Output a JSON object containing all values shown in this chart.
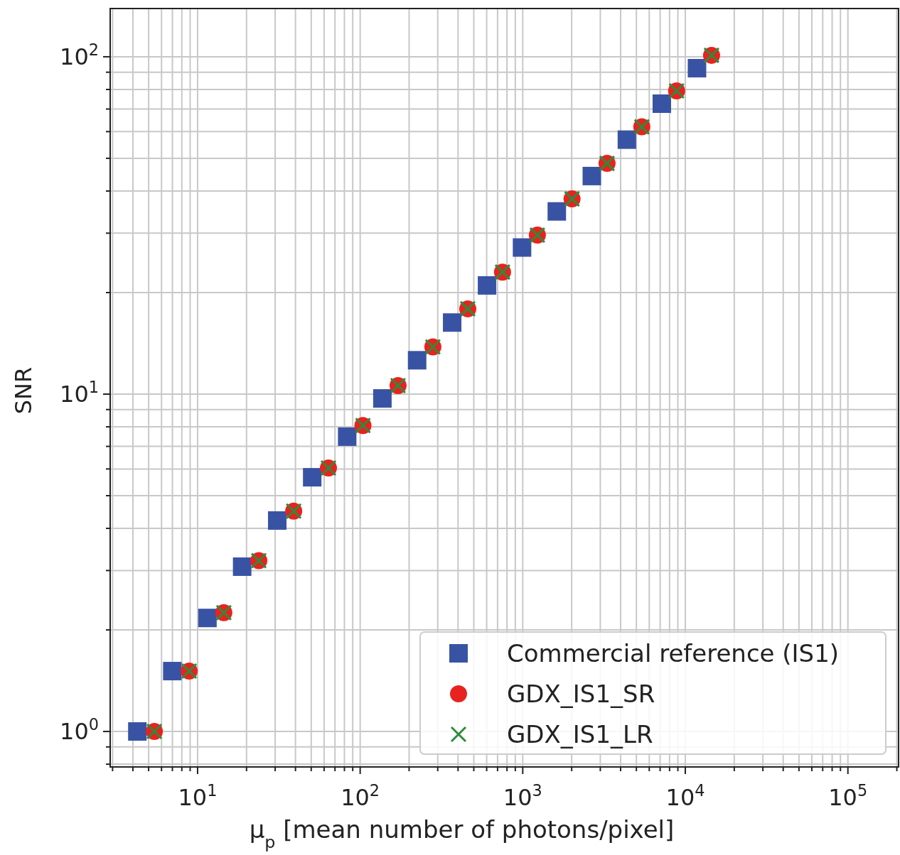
{
  "chart_data": {
    "type": "scatter",
    "xlabel": "μ$_{p}$ [mean number of photons/pixel]",
    "ylabel": "SNR",
    "log": "xy",
    "grid": true,
    "legend": "bottom right",
    "xlim": [
      2.9,
      205000
    ],
    "ylim": [
      0.785,
      139
    ],
    "xticks": [
      {
        "value": 3,
        "label": null
      },
      {
        "value": 4,
        "label": null
      },
      {
        "value": 5,
        "label": null
      },
      {
        "value": 6,
        "label": null
      },
      {
        "value": 7,
        "label": null
      },
      {
        "value": 8,
        "label": null
      },
      {
        "value": 9,
        "label": null
      },
      {
        "value": 10,
        "label": "10$^{1}$"
      },
      {
        "value": 20,
        "label": null
      },
      {
        "value": 30,
        "label": null
      },
      {
        "value": 40,
        "label": null
      },
      {
        "value": 50,
        "label": null
      },
      {
        "value": 60,
        "label": null
      },
      {
        "value": 70,
        "label": null
      },
      {
        "value": 80,
        "label": null
      },
      {
        "value": 90,
        "label": null
      },
      {
        "value": 100,
        "label": "10$^{2}$"
      },
      {
        "value": 200,
        "label": null
      },
      {
        "value": 300,
        "label": null
      },
      {
        "value": 400,
        "label": null
      },
      {
        "value": 500,
        "label": null
      },
      {
        "value": 600,
        "label": null
      },
      {
        "value": 700,
        "label": null
      },
      {
        "value": 800,
        "label": null
      },
      {
        "value": 900,
        "label": null
      },
      {
        "value": 1000,
        "label": "10$^{3}$"
      },
      {
        "value": 2000,
        "label": null
      },
      {
        "value": 3000,
        "label": null
      },
      {
        "value": 4000,
        "label": null
      },
      {
        "value": 5000,
        "label": null
      },
      {
        "value": 6000,
        "label": null
      },
      {
        "value": 7000,
        "label": null
      },
      {
        "value": 8000,
        "label": null
      },
      {
        "value": 9000,
        "label": null
      },
      {
        "value": 10000,
        "label": "10$^{4}$"
      },
      {
        "value": 20000,
        "label": null
      },
      {
        "value": 30000,
        "label": null
      },
      {
        "value": 40000,
        "label": null
      },
      {
        "value": 50000,
        "label": null
      },
      {
        "value": 60000,
        "label": null
      },
      {
        "value": 70000,
        "label": null
      },
      {
        "value": 80000,
        "label": null
      },
      {
        "value": 90000,
        "label": null
      },
      {
        "value": 100000,
        "label": "10$^{5}$"
      },
      {
        "value": 200000,
        "label": null
      }
    ],
    "yticks": [
      {
        "value": 0.8,
        "label": null
      },
      {
        "value": 0.9,
        "label": null
      },
      {
        "value": 1,
        "label": "10$^{0}$"
      },
      {
        "value": 2,
        "label": null
      },
      {
        "value": 3,
        "label": null
      },
      {
        "value": 4,
        "label": null
      },
      {
        "value": 5,
        "label": null
      },
      {
        "value": 6,
        "label": null
      },
      {
        "value": 7,
        "label": null
      },
      {
        "value": 8,
        "label": null
      },
      {
        "value": 9,
        "label": null
      },
      {
        "value": 10,
        "label": "10$^{1}$"
      },
      {
        "value": 20,
        "label": null
      },
      {
        "value": 30,
        "label": null
      },
      {
        "value": 40,
        "label": null
      },
      {
        "value": 50,
        "label": null
      },
      {
        "value": 60,
        "label": null
      },
      {
        "value": 70,
        "label": null
      },
      {
        "value": 80,
        "label": null
      },
      {
        "value": 90,
        "label": null
      },
      {
        "value": 100,
        "label": "10$^{2}$"
      }
    ],
    "series": [
      {
        "name": "Commercial reference (IS1)",
        "color": "#3953a4",
        "marker": "square",
        "x": [
          4.26,
          6.99,
          11.5,
          18.8,
          30.9,
          50.7,
          83.2,
          137,
          224,
          368,
          603,
          990,
          1620,
          2660,
          4370,
          7170,
          11800
        ],
        "values": [
          1.0,
          1.51,
          2.17,
          3.08,
          4.22,
          5.67,
          7.48,
          9.71,
          12.6,
          16.3,
          21.0,
          27.2,
          34.8,
          44.3,
          56.8,
          72.6,
          92.5
        ]
      },
      {
        "name": "GDX_IS1_SR",
        "color": "#e8231f",
        "marker": "circle",
        "x": [
          5.42,
          8.87,
          14.5,
          23.8,
          39.0,
          63.8,
          104,
          171,
          280,
          459,
          751,
          1230,
          2010,
          3300,
          5400,
          8840,
          14500
        ],
        "values": [
          1.0,
          1.51,
          2.25,
          3.21,
          4.5,
          6.04,
          8.07,
          10.6,
          13.8,
          17.9,
          23.0,
          29.6,
          37.9,
          48.3,
          62.0,
          79.2,
          101
        ]
      },
      {
        "name": "GDX_IS1_LR",
        "color": "#2e8b3a",
        "marker": "cross",
        "x": [
          5.42,
          8.87,
          14.5,
          23.8,
          39.0,
          63.8,
          104,
          171,
          280,
          459,
          751,
          1230,
          2010,
          3300,
          5400,
          8840,
          14500
        ],
        "values": [
          1.0,
          1.51,
          2.25,
          3.21,
          4.5,
          6.04,
          8.07,
          10.6,
          13.8,
          17.9,
          23.0,
          29.6,
          37.9,
          48.3,
          62.0,
          79.2,
          101
        ]
      }
    ]
  }
}
